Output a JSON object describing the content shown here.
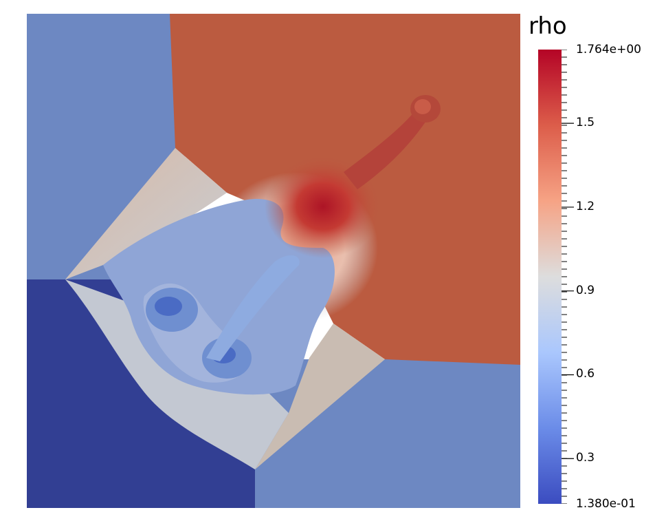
{
  "colorbar": {
    "title": "rho",
    "max_label": "1.764e+00",
    "min_label": "1.380e-01",
    "ticks": [
      "1.5",
      "1.2",
      "0.9",
      "0.6",
      "0.3"
    ],
    "tick_values": [
      1.5,
      1.2,
      0.9,
      0.6,
      0.3
    ],
    "range": [
      0.138,
      1.764
    ],
    "colormap": [
      "#3b4cc0",
      "#6b8ce8",
      "#aac7fd",
      "#dddddd",
      "#f6a385",
      "#dc5d4a",
      "#b40426"
    ]
  },
  "colors": {
    "low_dark": "#323f93",
    "low_blue": "#6d88c2",
    "mid_grey": "#c9cdd3",
    "high_red": "#bb5b40",
    "peak": "#b01d2a"
  }
}
